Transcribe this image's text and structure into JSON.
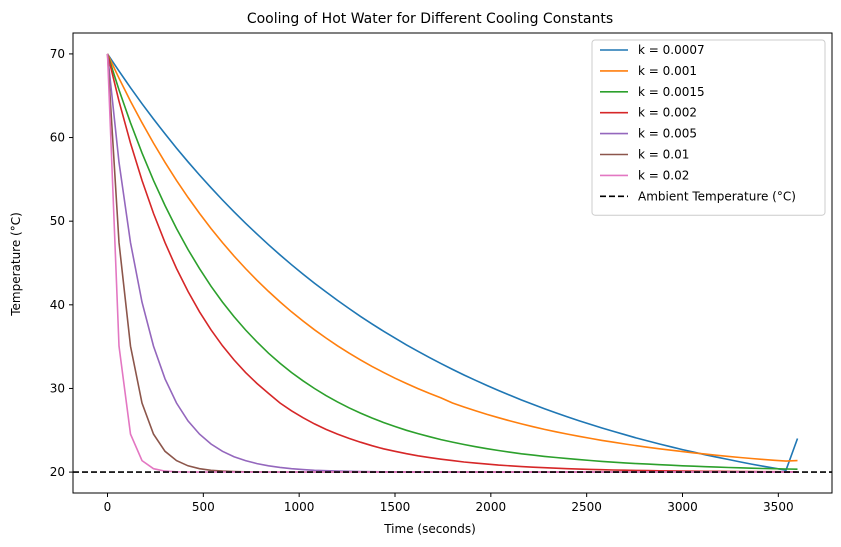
{
  "chart_data": {
    "type": "line",
    "title": "Cooling of Hot Water for Different Cooling Constants",
    "xlabel": "Time (seconds)",
    "ylabel": "Temperature (°C)",
    "xlim": [
      -180,
      3780
    ],
    "ylim": [
      17.5,
      72.5
    ],
    "xticks": [
      0,
      500,
      1000,
      1500,
      2000,
      2500,
      3000,
      3500
    ],
    "yticks": [
      20,
      30,
      40,
      50,
      60,
      70
    ],
    "grid": false,
    "legend_position": "top-right",
    "x": [
      0,
      60,
      120,
      180,
      240,
      300,
      360,
      420,
      480,
      540,
      600,
      660,
      720,
      780,
      840,
      900,
      960,
      1020,
      1080,
      1140,
      1200,
      1260,
      1320,
      1380,
      1440,
      1500,
      1560,
      1620,
      1680,
      1740,
      1800,
      1860,
      1920,
      1980,
      2040,
      2100,
      2160,
      2220,
      2280,
      2340,
      2400,
      2460,
      2520,
      2580,
      2640,
      2700,
      2760,
      2820,
      2880,
      2940,
      3000,
      3060,
      3120,
      3180,
      3240,
      3300,
      3360,
      3420,
      3480,
      3540,
      3600
    ],
    "series": [
      {
        "name": "k = 0.0007",
        "color": "#1f77b4",
        "dashed": false,
        "values": [
          70.0,
          67.94,
          65.96,
          64.05,
          62.22,
          60.45,
          58.74,
          57.1,
          55.52,
          54.0,
          52.53,
          51.12,
          49.76,
          48.45,
          47.19,
          45.97,
          44.8,
          43.67,
          42.59,
          41.54,
          40.53,
          39.56,
          38.62,
          37.72,
          36.85,
          36.02,
          35.21,
          34.44,
          33.69,
          32.97,
          32.28,
          31.61,
          30.97,
          30.35,
          29.75,
          29.18,
          28.62,
          28.09,
          27.58,
          27.08,
          26.6,
          26.14,
          25.7,
          25.27,
          24.86,
          24.47,
          24.08,
          23.72,
          23.36,
          23.02,
          22.69,
          22.38,
          22.07,
          21.78,
          21.5,
          21.22,
          20.96,
          20.71,
          20.46,
          20.23,
          24.02
        ]
      },
      {
        "name": "k = 0.001",
        "color": "#ff7f0e",
        "dashed": false,
        "values": [
          70.0,
          67.09,
          64.35,
          61.77,
          59.33,
          57.04,
          54.88,
          52.84,
          50.93,
          49.13,
          47.44,
          45.84,
          44.34,
          42.93,
          41.6,
          40.35,
          39.17,
          38.06,
          37.01,
          36.03,
          35.1,
          34.23,
          33.41,
          32.64,
          31.92,
          31.23,
          30.59,
          29.98,
          29.41,
          28.87,
          28.26,
          27.78,
          27.33,
          26.9,
          26.5,
          26.12,
          25.76,
          25.43,
          25.11,
          24.82,
          24.54,
          24.28,
          24.03,
          23.79,
          23.57,
          23.36,
          23.16,
          22.97,
          22.79,
          22.62,
          22.45,
          22.3,
          22.15,
          22.01,
          21.88,
          21.75,
          21.63,
          21.52,
          21.41,
          21.31,
          21.37
        ]
      },
      {
        "name": "k = 0.0015",
        "color": "#2ca02c",
        "dashed": false,
        "values": [
          70.0,
          65.7,
          61.76,
          58.16,
          54.88,
          51.88,
          49.13,
          46.62,
          44.33,
          42.23,
          40.33,
          38.59,
          37.0,
          35.55,
          34.22,
          33.02,
          31.91,
          30.91,
          29.99,
          29.15,
          28.39,
          27.69,
          27.05,
          26.47,
          25.93,
          25.45,
          25.0,
          24.6,
          24.23,
          23.89,
          23.58,
          23.3,
          23.03,
          22.8,
          22.58,
          22.38,
          22.19,
          22.03,
          21.88,
          21.74,
          21.61,
          21.49,
          21.38,
          21.28,
          21.18,
          21.1,
          21.02,
          20.95,
          20.88,
          20.82,
          20.75,
          20.7,
          20.65,
          20.6,
          20.55,
          20.51,
          20.47,
          20.43,
          20.4,
          20.37,
          20.34
        ]
      },
      {
        "name": "k = 0.002",
        "color": "#d62728",
        "dashed": false,
        "values": [
          70.0,
          64.35,
          59.33,
          54.88,
          50.93,
          47.44,
          44.34,
          41.6,
          39.17,
          37.01,
          35.1,
          33.41,
          31.92,
          30.59,
          29.41,
          28.26,
          27.33,
          26.5,
          25.76,
          25.11,
          24.54,
          24.03,
          23.57,
          23.16,
          22.79,
          22.49,
          22.2,
          21.95,
          21.73,
          21.54,
          21.37,
          21.21,
          21.07,
          20.95,
          20.84,
          20.75,
          20.66,
          20.59,
          20.52,
          20.46,
          20.41,
          20.36,
          20.32,
          20.29,
          20.25,
          20.23,
          20.2,
          20.18,
          20.16,
          20.14,
          20.12,
          20.11,
          20.1,
          20.09,
          20.08,
          20.07,
          20.06,
          20.05,
          20.05,
          20.04,
          20.04
        ]
      },
      {
        "name": "k = 0.005",
        "color": "#9467bd",
        "dashed": false,
        "values": [
          70.0,
          57.04,
          47.44,
          40.33,
          35.06,
          31.16,
          28.26,
          26.12,
          24.54,
          23.36,
          22.49,
          21.84,
          21.37,
          21.01,
          20.75,
          20.56,
          20.41,
          20.3,
          20.22,
          20.17,
          20.12,
          20.09,
          20.07,
          20.05,
          20.04,
          20.03,
          20.02,
          20.02,
          20.01,
          20.01,
          20.01,
          20.0,
          20.0,
          20.0,
          20.0,
          20.0,
          20.0,
          20.0,
          20.0,
          20.0,
          20.0,
          20.0,
          20.0,
          20.0,
          20.0,
          20.0,
          20.0,
          20.0,
          20.0,
          20.0,
          20.0,
          20.0,
          20.0,
          20.0,
          20.0,
          20.0,
          20.0,
          20.0,
          20.0,
          20.0,
          20.0
        ]
      },
      {
        "name": "k = 0.01",
        "color": "#8c564b",
        "dashed": false,
        "values": [
          70.0,
          47.44,
          35.06,
          28.26,
          24.54,
          22.49,
          21.37,
          20.75,
          20.41,
          20.22,
          20.12,
          20.07,
          20.04,
          20.02,
          20.01,
          20.01,
          20.0,
          20.0,
          20.0,
          20.0,
          20.0,
          20.0,
          20.0,
          20.0,
          20.0,
          20.0,
          20.0,
          20.0,
          20.0,
          20.0,
          20.0,
          20.0,
          20.0,
          20.0,
          20.0,
          20.0,
          20.0,
          20.0,
          20.0,
          20.0,
          20.0,
          20.0,
          20.0,
          20.0,
          20.0,
          20.0,
          20.0,
          20.0,
          20.0,
          20.0,
          20.0,
          20.0,
          20.0,
          20.0,
          20.0,
          20.0,
          20.0,
          20.0,
          20.0,
          20.0,
          20.0
        ]
      },
      {
        "name": "k = 0.02",
        "color": "#e377c2",
        "dashed": false,
        "values": [
          70.0,
          35.06,
          24.54,
          21.37,
          20.41,
          20.12,
          20.04,
          20.01,
          20.0,
          20.0,
          20.0,
          20.0,
          20.0,
          20.0,
          20.0,
          20.0,
          20.0,
          20.0,
          20.0,
          20.0,
          20.0,
          20.0,
          20.0,
          20.0,
          20.0,
          20.0,
          20.0,
          20.0,
          20.0,
          20.0,
          20.0,
          20.0,
          20.0,
          20.0,
          20.0,
          20.0,
          20.0,
          20.0,
          20.0,
          20.0,
          20.0,
          20.0,
          20.0,
          20.0,
          20.0,
          20.0,
          20.0,
          20.0,
          20.0,
          20.0,
          20.0,
          20.0,
          20.0,
          20.0,
          20.0,
          20.0,
          20.0,
          20.0,
          20.0,
          20.0,
          20.0
        ]
      }
    ],
    "reference_lines": [
      {
        "name": "Ambient Temperature (°C)",
        "orientation": "horizontal",
        "y": 20,
        "color": "#000000",
        "dashed": true
      }
    ]
  }
}
